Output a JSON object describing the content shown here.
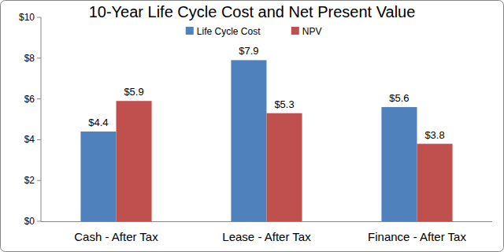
{
  "chart_data": {
    "type": "bar",
    "title": "10-Year Life Cycle Cost and Net Present Value",
    "categories": [
      "Cash - After Tax",
      "Lease - After Tax",
      "Finance - After Tax"
    ],
    "series": [
      {
        "name": "Life Cycle Cost",
        "color": "#4f81bd",
        "values": [
          4.4,
          7.9,
          5.6
        ],
        "value_labels": [
          "$4.4",
          "$7.9",
          "$5.6"
        ]
      },
      {
        "name": "NPV",
        "color": "#c0504d",
        "values": [
          5.9,
          5.3,
          3.8
        ],
        "value_labels": [
          "$5.9",
          "$5.3",
          "$3.8"
        ]
      }
    ],
    "ylim": [
      0,
      10
    ],
    "yticks": [
      {
        "value": 0,
        "label": "$0"
      },
      {
        "value": 2,
        "label": "$2"
      },
      {
        "value": 4,
        "label": "$4"
      },
      {
        "value": 6,
        "label": "$6"
      },
      {
        "value": 8,
        "label": "$8"
      },
      {
        "value": 10,
        "label": "$10"
      }
    ],
    "grid": false,
    "legend": "top",
    "data_labels": true
  }
}
